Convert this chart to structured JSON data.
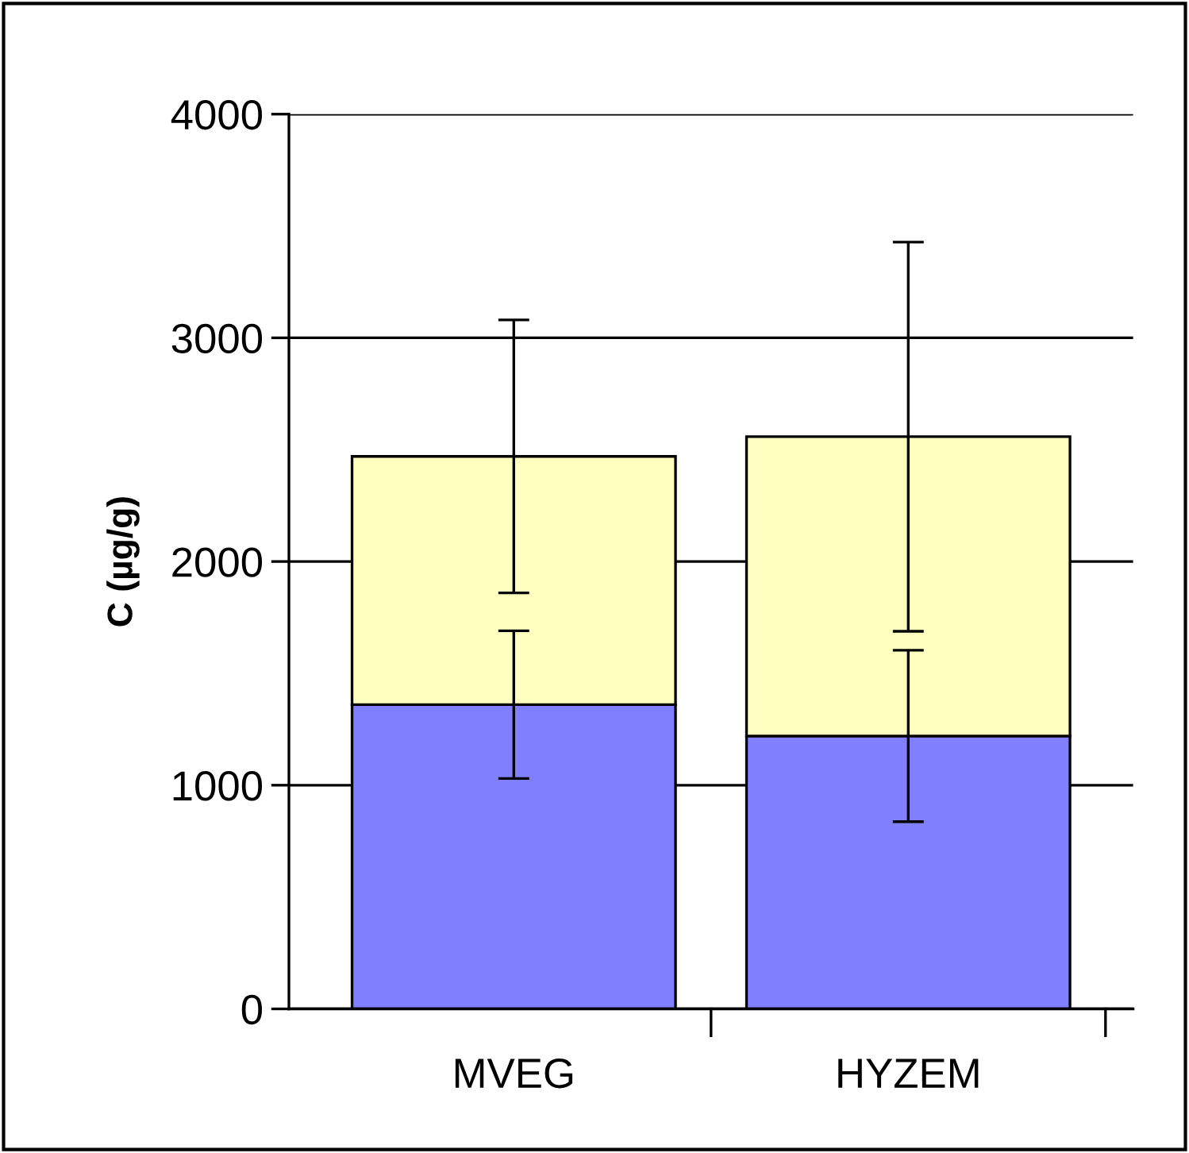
{
  "chart_data": {
    "type": "bar",
    "stacked": true,
    "ylabel": "C (µg/g)",
    "categories": [
      "MVEG",
      "HYZEM"
    ],
    "series": [
      {
        "color": "#8080ff",
        "values": [
          1360,
          1220
        ],
        "errors": [
          330,
          383
        ]
      },
      {
        "color": "#ffffc0",
        "values": [
          1110,
          1338
        ],
        "errors": [
          610,
          870
        ]
      }
    ],
    "ylim": [
      0,
      4000
    ],
    "yticks": [
      0,
      1000,
      2000,
      3000,
      4000
    ],
    "grid": "y",
    "legend": false
  }
}
